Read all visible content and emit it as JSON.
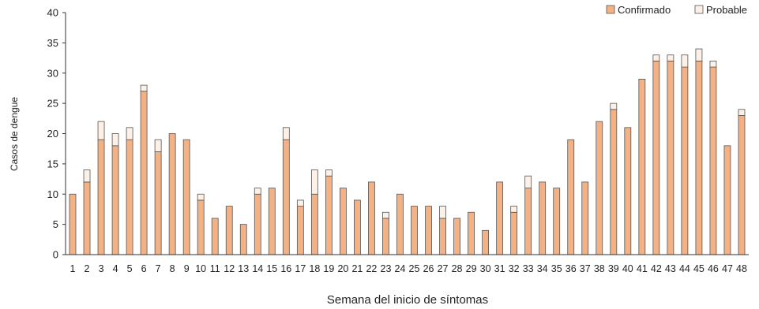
{
  "chart_data": {
    "type": "bar",
    "stacked": true,
    "xlabel": "Semana del inicio de síntomas",
    "ylabel": "Casos de dengue",
    "ylim": [
      0,
      40
    ],
    "yticks": [
      0,
      5,
      10,
      15,
      20,
      25,
      30,
      35,
      40
    ],
    "categories": [
      "1",
      "2",
      "3",
      "4",
      "5",
      "6",
      "7",
      "8",
      "9",
      "10",
      "11",
      "12",
      "13",
      "14",
      "15",
      "16",
      "17",
      "18",
      "19",
      "20",
      "21",
      "22",
      "23",
      "24",
      "25",
      "26",
      "27",
      "28",
      "29",
      "30",
      "31",
      "32",
      "33",
      "34",
      "35",
      "36",
      "37",
      "38",
      "39",
      "40",
      "41",
      "42",
      "43",
      "44",
      "45",
      "46",
      "47",
      "48"
    ],
    "series": [
      {
        "name": "Confirmado",
        "color": "#f4b183",
        "values": [
          10,
          12,
          19,
          18,
          19,
          27,
          17,
          20,
          19,
          9,
          6,
          8,
          5,
          10,
          11,
          19,
          8,
          10,
          13,
          11,
          9,
          12,
          6,
          10,
          8,
          8,
          6,
          6,
          7,
          4,
          12,
          7,
          11,
          12,
          11,
          19,
          12,
          22,
          24,
          21,
          29,
          32,
          32,
          31,
          32,
          31,
          18,
          23
        ]
      },
      {
        "name": "Probable",
        "color": "#fdf0e6",
        "values": [
          0,
          2,
          3,
          2,
          2,
          1,
          2,
          0,
          0,
          1,
          0,
          0,
          0,
          1,
          0,
          2,
          1,
          4,
          1,
          0,
          0,
          0,
          1,
          0,
          0,
          0,
          2,
          0,
          0,
          0,
          0,
          1,
          2,
          0,
          0,
          0,
          0,
          0,
          1,
          0,
          0,
          1,
          1,
          2,
          2,
          1,
          0,
          1
        ]
      }
    ],
    "legend": {
      "position": "top-right"
    },
    "grid": false
  }
}
